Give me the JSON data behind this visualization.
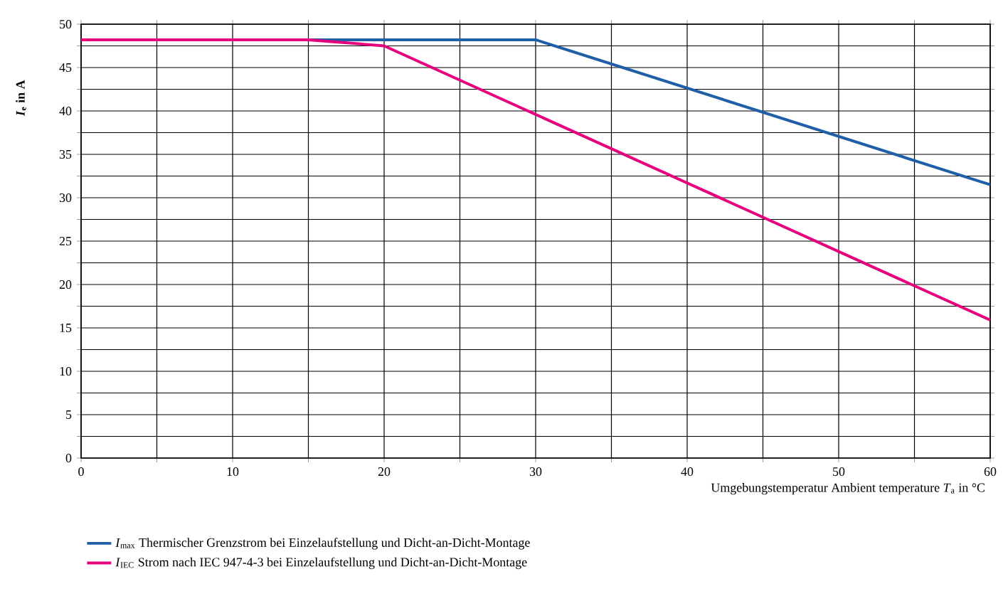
{
  "chart_data": {
    "type": "line",
    "xlabel": "Umgebungstemperatur Ambient temperature *T*$_{a}$ in °C",
    "ylabel": "*I*$_{e}$ in A",
    "series": [
      {
        "name": "*I*$_{max}$ Thermischer Grenzstrom bei Einzelaufstellung und Dicht-an-Dicht-Montage",
        "color": "#1f5fa8",
        "x": [
          0,
          30,
          60
        ],
        "values": [
          48.2,
          48.2,
          31.5
        ]
      },
      {
        "name": "*I*$_{IEC}$ Strom nach IEC 947-4-3 bei Einzelaufstellung und Dicht-an-Dicht-Montage",
        "color": "#e6007e",
        "x": [
          0,
          15,
          20,
          60
        ],
        "values": [
          48.2,
          48.2,
          47.5,
          15.9
        ]
      }
    ],
    "xlim": [
      0,
      60
    ],
    "ylim": [
      0,
      50
    ],
    "xticks": [
      0,
      {
        "value": 5,
        "label": null
      },
      10,
      {
        "value": 15,
        "label": null
      },
      20,
      {
        "value": 25,
        "label": null
      },
      30,
      {
        "value": 35,
        "label": null
      },
      40,
      {
        "value": 45,
        "label": null
      },
      50,
      {
        "value": 55,
        "label": null
      },
      60
    ],
    "yticks": [
      0,
      {
        "value": 2.5,
        "label": null
      },
      5,
      {
        "value": 7.5,
        "label": null
      },
      10,
      {
        "value": 12.5,
        "label": null
      },
      15,
      {
        "value": 17.5,
        "label": null
      },
      20,
      {
        "value": 22.5,
        "label": null
      },
      25,
      {
        "value": 27.5,
        "label": null
      },
      30,
      {
        "value": 32.5,
        "label": null
      },
      35,
      {
        "value": 37.5,
        "label": null
      },
      40,
      {
        "value": 42.5,
        "label": null
      },
      45,
      {
        "value": 47.5,
        "label": null
      },
      50
    ],
    "grid": true,
    "legend": "bottom",
    "marker": "none",
    "line_style": "solid"
  }
}
